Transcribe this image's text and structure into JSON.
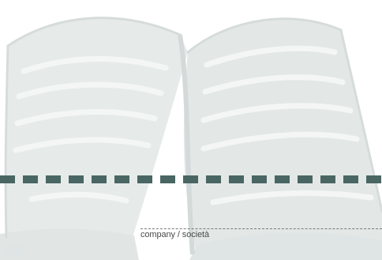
{
  "form": {
    "company_label": "company / società"
  },
  "colors": {
    "dash_rule": "#496663",
    "art_light": "#eaeeed",
    "art_mid": "#dde3e2"
  },
  "art": {
    "icon": "open-book-icon"
  }
}
